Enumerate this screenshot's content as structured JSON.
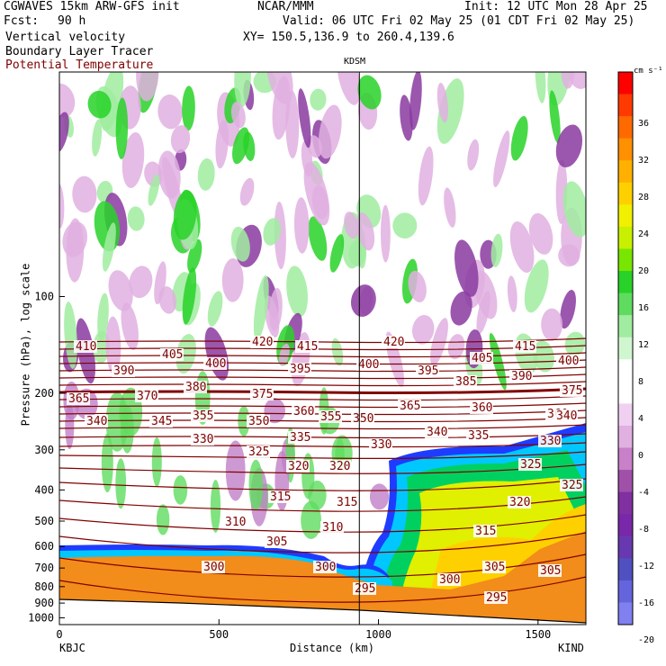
{
  "header": {
    "model": "CGWAVES 15km ARW-GFS init",
    "org": "NCAR/MMM",
    "init": "Init: 12 UTC Mon 28 Apr 25",
    "fcst_label": "Fcst:",
    "fcst_value": "90 h",
    "valid": "Valid: 06 UTC Fri 02 May 25 (01 CDT Fri 02 May 25)",
    "xy": "XY= 150.5,136.9 to 260.4,139.6"
  },
  "fields": {
    "f1": "Vertical velocity",
    "f2": "Boundary Layer Tracer",
    "f3": "Potential Temperature"
  },
  "station_marker": "KDSM",
  "colors": {
    "theta": "#800000",
    "terrain": "#f28c1a",
    "tracer_outer": "#1e3cff",
    "upward": "#5fdc5f",
    "downward": "#c878c8"
  },
  "chart_data": {
    "type": "heatmap",
    "ylabel": "Pressure (hPa), log scale",
    "xlabel": "Distance (km)",
    "xlim": [
      0,
      1650
    ],
    "ylim": [
      1050,
      20
    ],
    "x_ticks": [
      "0",
      "500",
      "1000",
      "1500"
    ],
    "y_ticks": [
      "100",
      "200",
      "300",
      "400",
      "500",
      "600",
      "700",
      "800",
      "900",
      "1000"
    ],
    "endpoints": {
      "left": "KBJC",
      "right": "KIND"
    },
    "marker_x_km": 940,
    "colorbar": {
      "unit": "cm s⁻¹",
      "ticks": [
        "36",
        "32",
        "28",
        "24",
        "20",
        "16",
        "12",
        "8",
        "4",
        "0",
        "-4",
        "-8",
        "-12",
        "-16",
        "-20"
      ],
      "colors": [
        "#ff0000",
        "#ff3a00",
        "#ff6a00",
        "#ff9000",
        "#ffb000",
        "#ffd000",
        "#f0f000",
        "#c8f000",
        "#78e600",
        "#28d228",
        "#5fdc5f",
        "#a0eca0",
        "#d0f6d0",
        "#ffffff",
        "#ffffff",
        "#f0d0f0",
        "#e0b0e0",
        "#c880c8",
        "#a050a8",
        "#8030a0",
        "#7828a8",
        "#6838b0",
        "#5050c0",
        "#6464dc",
        "#8080f0"
      ]
    },
    "isentrope_labels": [
      "410",
      "420",
      "415",
      "420",
      "415",
      "405",
      "400",
      "395",
      "400",
      "395",
      "405",
      "400",
      "390",
      "385",
      "390",
      "365",
      "370",
      "380",
      "375",
      "360",
      "365",
      "360",
      "375",
      "340",
      "345",
      "355",
      "350",
      "360",
      "355",
      "350",
      "340",
      "330",
      "335",
      "330",
      "340",
      "335",
      "330",
      "325",
      "320",
      "320",
      "325",
      "325",
      "315",
      "315",
      "320",
      "310",
      "310",
      "315",
      "305",
      "300",
      "300",
      "305",
      "305",
      "300",
      "295",
      "295"
    ]
  }
}
